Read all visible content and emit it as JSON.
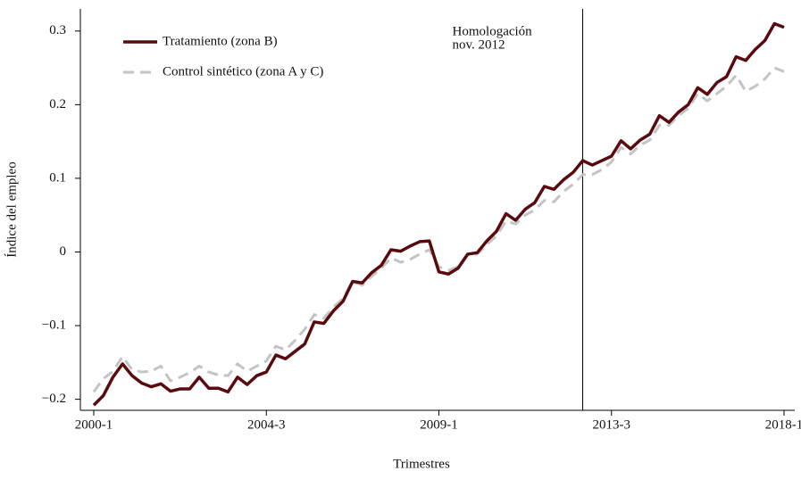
{
  "chart_data": {
    "type": "line",
    "x_label": "Trimestres",
    "y_label": "Índice del empleo",
    "categories": [
      "2000-1",
      null,
      null,
      null,
      null,
      null,
      null,
      null,
      null,
      null,
      null,
      null,
      null,
      null,
      null,
      null,
      null,
      null,
      "2004-3",
      null,
      null,
      null,
      null,
      null,
      null,
      null,
      null,
      null,
      null,
      null,
      null,
      null,
      null,
      null,
      null,
      null,
      "2009-1",
      null,
      null,
      null,
      null,
      null,
      null,
      null,
      null,
      null,
      null,
      null,
      null,
      null,
      null,
      null,
      null,
      null,
      "2013-3",
      null,
      null,
      null,
      null,
      null,
      null,
      null,
      null,
      null,
      null,
      null,
      null,
      null,
      null,
      null,
      null,
      null,
      "2018-1"
    ],
    "series": [
      {
        "name": "Tratamiento (zona B)",
        "color": "#5a0a0e",
        "line_style": "solid",
        "values": [
          -0.208,
          -0.195,
          -0.17,
          -0.152,
          -0.168,
          -0.178,
          -0.183,
          -0.179,
          -0.189,
          -0.186,
          -0.186,
          -0.17,
          -0.185,
          -0.185,
          -0.19,
          -0.17,
          -0.18,
          -0.168,
          -0.163,
          -0.14,
          -0.145,
          -0.135,
          -0.125,
          -0.095,
          -0.097,
          -0.08,
          -0.067,
          -0.04,
          -0.042,
          -0.028,
          -0.018,
          0.003,
          0.001,
          0.008,
          0.014,
          0.015,
          -0.027,
          -0.03,
          -0.022,
          -0.003,
          -0.001,
          0.015,
          0.028,
          0.052,
          0.043,
          0.058,
          0.067,
          0.089,
          0.085,
          0.098,
          0.108,
          0.124,
          0.118,
          0.124,
          0.13,
          0.151,
          0.14,
          0.152,
          0.16,
          0.185,
          0.176,
          0.19,
          0.2,
          0.223,
          0.214,
          0.23,
          0.238,
          0.265,
          0.26,
          0.275,
          0.287,
          0.31,
          0.305
        ]
      },
      {
        "name": "Control sintético (zona A y C)",
        "color": "#c4c4c4",
        "line_style": "dashed",
        "values": [
          -0.19,
          -0.172,
          -0.162,
          -0.142,
          -0.16,
          -0.163,
          -0.162,
          -0.155,
          -0.175,
          -0.17,
          -0.164,
          -0.155,
          -0.163,
          -0.167,
          -0.168,
          -0.152,
          -0.162,
          -0.155,
          -0.148,
          -0.128,
          -0.133,
          -0.12,
          -0.105,
          -0.085,
          -0.09,
          -0.075,
          -0.063,
          -0.04,
          -0.045,
          -0.033,
          -0.022,
          -0.008,
          -0.014,
          -0.01,
          -0.003,
          0.003,
          -0.02,
          -0.025,
          -0.02,
          -0.003,
          -0.003,
          0.01,
          0.022,
          0.042,
          0.038,
          0.05,
          0.057,
          0.07,
          0.068,
          0.082,
          0.092,
          0.105,
          0.105,
          0.112,
          0.122,
          0.142,
          0.133,
          0.145,
          0.152,
          0.172,
          0.172,
          0.185,
          0.195,
          0.215,
          0.205,
          0.215,
          0.225,
          0.24,
          0.218,
          0.225,
          0.235,
          0.25,
          0.245
        ]
      }
    ],
    "ylim": [
      -0.215,
      0.33
    ],
    "yticks": [
      {
        "value": -0.2,
        "label": "−0.2"
      },
      {
        "value": -0.1,
        "label": "−0.1"
      },
      0,
      0.1,
      0.2,
      0.3
    ],
    "grid": false,
    "legend": "upper-left",
    "annotation": {
      "lines": [
        "Homologación",
        "nov. 2012"
      ],
      "x_index": 51
    }
  }
}
